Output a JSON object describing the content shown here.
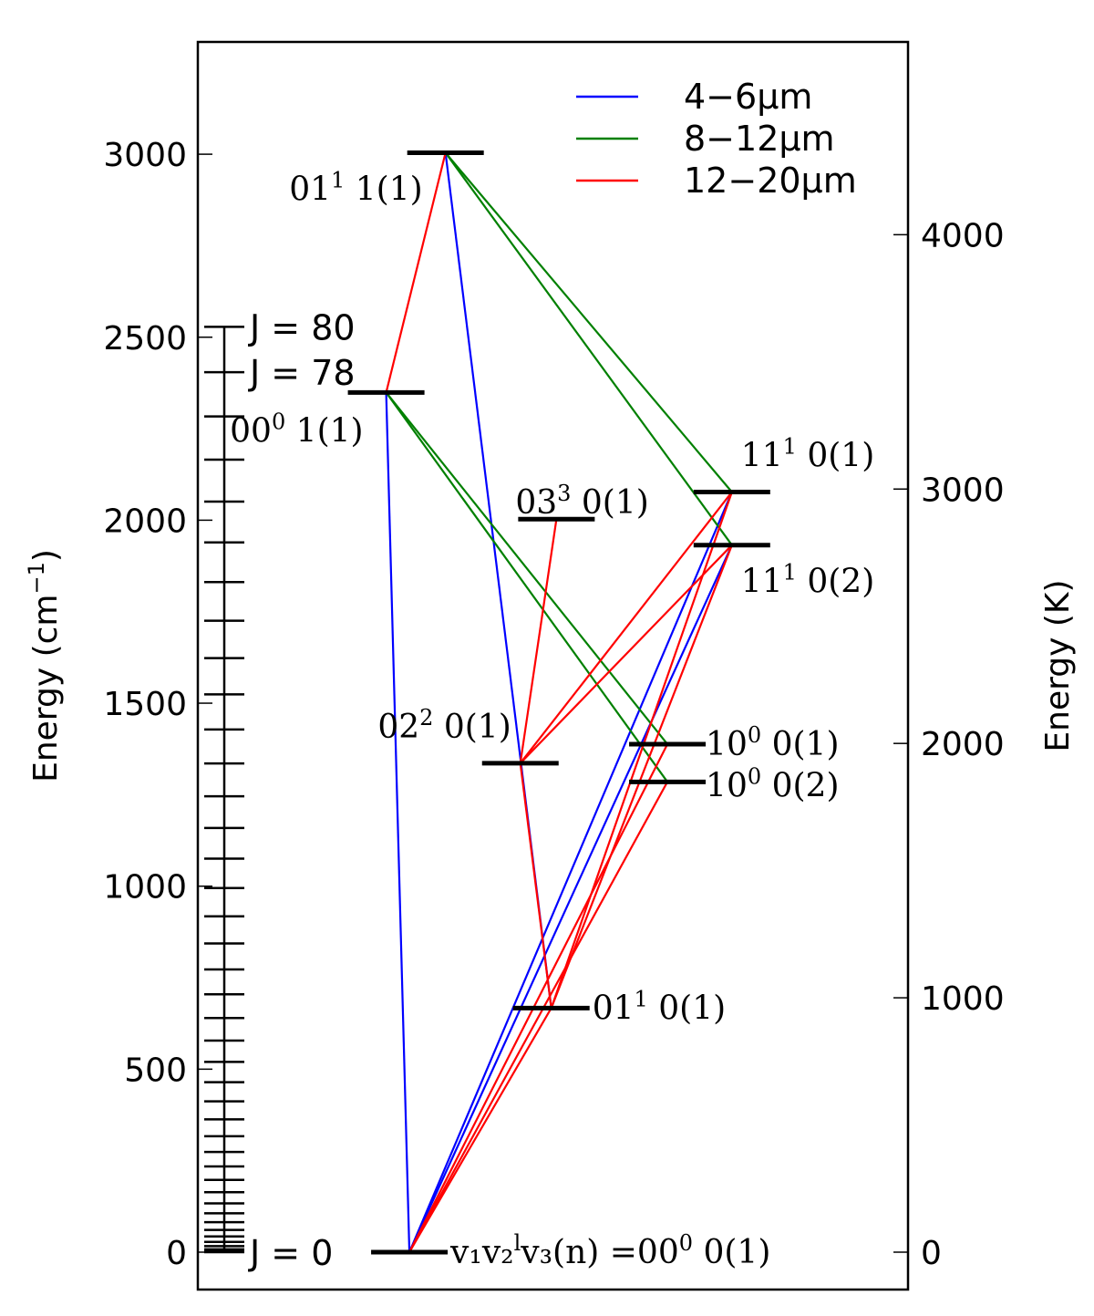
{
  "axes": {
    "left_label_main": "Energy (cm",
    "left_label_exp": "−1",
    "left_label_close": ")",
    "right_label": "Energy (K)",
    "left_ticks": [
      "0",
      "500",
      "1000",
      "1500",
      "2000",
      "2500",
      "3000"
    ],
    "right_ticks": [
      "0",
      "1000",
      "2000",
      "3000",
      "4000"
    ],
    "left_range": [
      -100,
      3300
    ]
  },
  "legend": [
    {
      "label": "4−6μm",
      "color": "#0000ff"
    },
    {
      "label": "8−12μm",
      "color": "#008000"
    },
    {
      "label": "12−20μm",
      "color": "#ff0000"
    }
  ],
  "j_ladder": {
    "j_values": [
      0,
      2,
      4,
      6,
      8,
      10,
      12,
      14,
      16,
      18,
      20,
      22,
      24,
      26,
      28,
      30,
      32,
      34,
      36,
      38,
      40,
      42,
      44,
      46,
      48,
      50,
      52,
      54,
      56,
      58,
      60,
      62,
      64,
      66,
      68,
      70,
      72,
      74,
      76,
      78,
      80
    ],
    "labels": [
      {
        "text": "J = 80",
        "j": 80
      },
      {
        "text": "J = 78",
        "j": 78
      },
      {
        "text": "J = 0",
        "j": 0
      }
    ]
  },
  "levels": [
    {
      "id": "ground",
      "energy": 0,
      "x": 0.82,
      "label": {
        "pre": "v₁v₂",
        "sup": "l",
        "post": "v₃(n) =00",
        "sup2": "0",
        "tail": " 0(1)"
      }
    },
    {
      "id": "01110",
      "energy": 667,
      "x": 1.37,
      "label": {
        "pre": "01",
        "sup": "1",
        "post": " 0(1)"
      }
    },
    {
      "id": "02200",
      "energy": 1336,
      "x": 1.25,
      "label": {
        "pre": "02",
        "sup": "2",
        "post": " 0(1)"
      }
    },
    {
      "id": "10002",
      "energy": 1285,
      "x": 1.82,
      "label": {
        "pre": "10",
        "sup": "0",
        "post": " 0(2)"
      }
    },
    {
      "id": "10001",
      "energy": 1388,
      "x": 1.82,
      "label": {
        "pre": "10",
        "sup": "0",
        "post": " 0(1)"
      }
    },
    {
      "id": "03300",
      "energy": 2003,
      "x": 1.39,
      "label": {
        "pre": "03",
        "sup": "3",
        "post": " 0(1)"
      }
    },
    {
      "id": "11102",
      "energy": 1932,
      "x": 2.07,
      "label": {
        "pre": "11",
        "sup": "1",
        "post": " 0(2)"
      }
    },
    {
      "id": "11101",
      "energy": 2077,
      "x": 2.07,
      "label": {
        "pre": "11",
        "sup": "1",
        "post": " 0(1)"
      }
    },
    {
      "id": "00011",
      "energy": 2349,
      "x": 0.73,
      "label": {
        "pre": "00",
        "sup": "0",
        "post": " 1(1)"
      }
    },
    {
      "id": "01111",
      "energy": 3004,
      "x": 0.96,
      "label": {
        "pre": "01",
        "sup": "1",
        "post": " 1(1)"
      }
    }
  ],
  "transitions": [
    {
      "from": "ground",
      "to": "00011",
      "band": 0
    },
    {
      "from": "ground",
      "to": "11101",
      "band": 0
    },
    {
      "from": "ground",
      "to": "11102",
      "band": 0
    },
    {
      "from": "01110",
      "to": "01111",
      "band": 0
    },
    {
      "from": "00011",
      "to": "10001",
      "band": 1
    },
    {
      "from": "00011",
      "to": "10002",
      "band": 1
    },
    {
      "from": "01111",
      "to": "11101",
      "band": 1
    },
    {
      "from": "01111",
      "to": "11102",
      "band": 1
    },
    {
      "from": "00011",
      "to": "01111",
      "band": 2
    },
    {
      "from": "ground",
      "to": "01110",
      "band": 2
    },
    {
      "from": "01110",
      "to": "02200",
      "band": 2
    },
    {
      "from": "02200",
      "to": "03300",
      "band": 2
    },
    {
      "from": "02200",
      "to": "11101",
      "band": 2
    },
    {
      "from": "02200",
      "to": "11102",
      "band": 2
    },
    {
      "from": "01110",
      "to": "11101",
      "band": 2
    },
    {
      "from": "01110",
      "to": "11102",
      "band": 2
    },
    {
      "from": "ground",
      "to": "10001",
      "band": 2
    },
    {
      "from": "ground",
      "to": "10002",
      "band": 2
    }
  ]
}
